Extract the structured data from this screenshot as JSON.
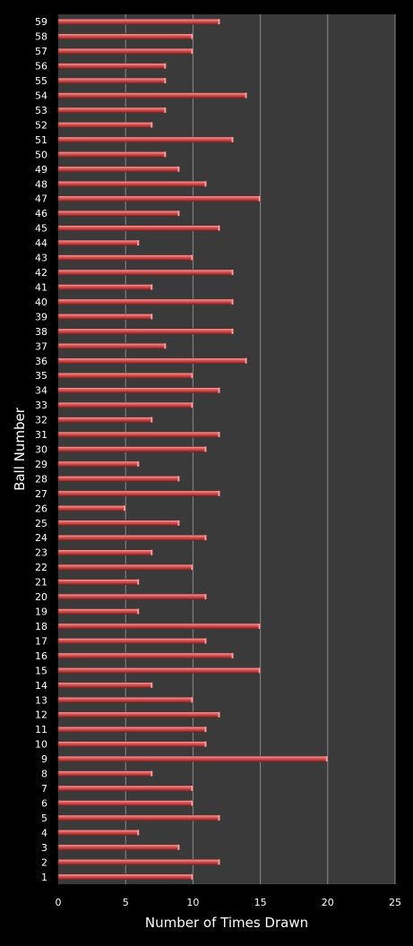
{
  "chart_data": {
    "type": "bar",
    "orientation": "horizontal",
    "xlabel": "Number of Times Drawn",
    "ylabel": "Ball Number",
    "xlim": [
      0,
      25
    ],
    "xticks": [
      "0",
      "5",
      "10",
      "15",
      "20",
      "25"
    ],
    "grid": true,
    "legend": "none",
    "categories": [
      "1",
      "2",
      "3",
      "4",
      "5",
      "6",
      "7",
      "8",
      "9",
      "10",
      "11",
      "12",
      "13",
      "14",
      "15",
      "16",
      "17",
      "18",
      "19",
      "20",
      "21",
      "22",
      "23",
      "24",
      "25",
      "26",
      "27",
      "28",
      "29",
      "30",
      "31",
      "32",
      "33",
      "34",
      "35",
      "36",
      "37",
      "38",
      "39",
      "40",
      "41",
      "42",
      "43",
      "44",
      "45",
      "46",
      "47",
      "48",
      "49",
      "50",
      "51",
      "52",
      "53",
      "54",
      "55",
      "56",
      "57",
      "58",
      "59"
    ],
    "values": [
      10,
      12,
      9,
      6,
      12,
      10,
      10,
      7,
      20,
      11,
      11,
      12,
      10,
      7,
      15,
      13,
      11,
      15,
      6,
      11,
      6,
      10,
      7,
      11,
      9,
      5,
      12,
      9,
      6,
      11,
      12,
      7,
      10,
      12,
      10,
      14,
      8,
      13,
      7,
      13,
      7,
      13,
      10,
      6,
      12,
      9,
      15,
      11,
      9,
      8,
      13,
      7,
      8,
      14,
      8,
      8,
      10,
      10,
      12
    ],
    "colors": {
      "background": "#000000",
      "plot_area": "#3a3a3a",
      "gridline": "#8a8a8a",
      "bar": "#d9534f",
      "bar_highlight": "#f0a0a0",
      "bar_shadow": "#7a1f1f",
      "text": "#ffffff"
    }
  }
}
